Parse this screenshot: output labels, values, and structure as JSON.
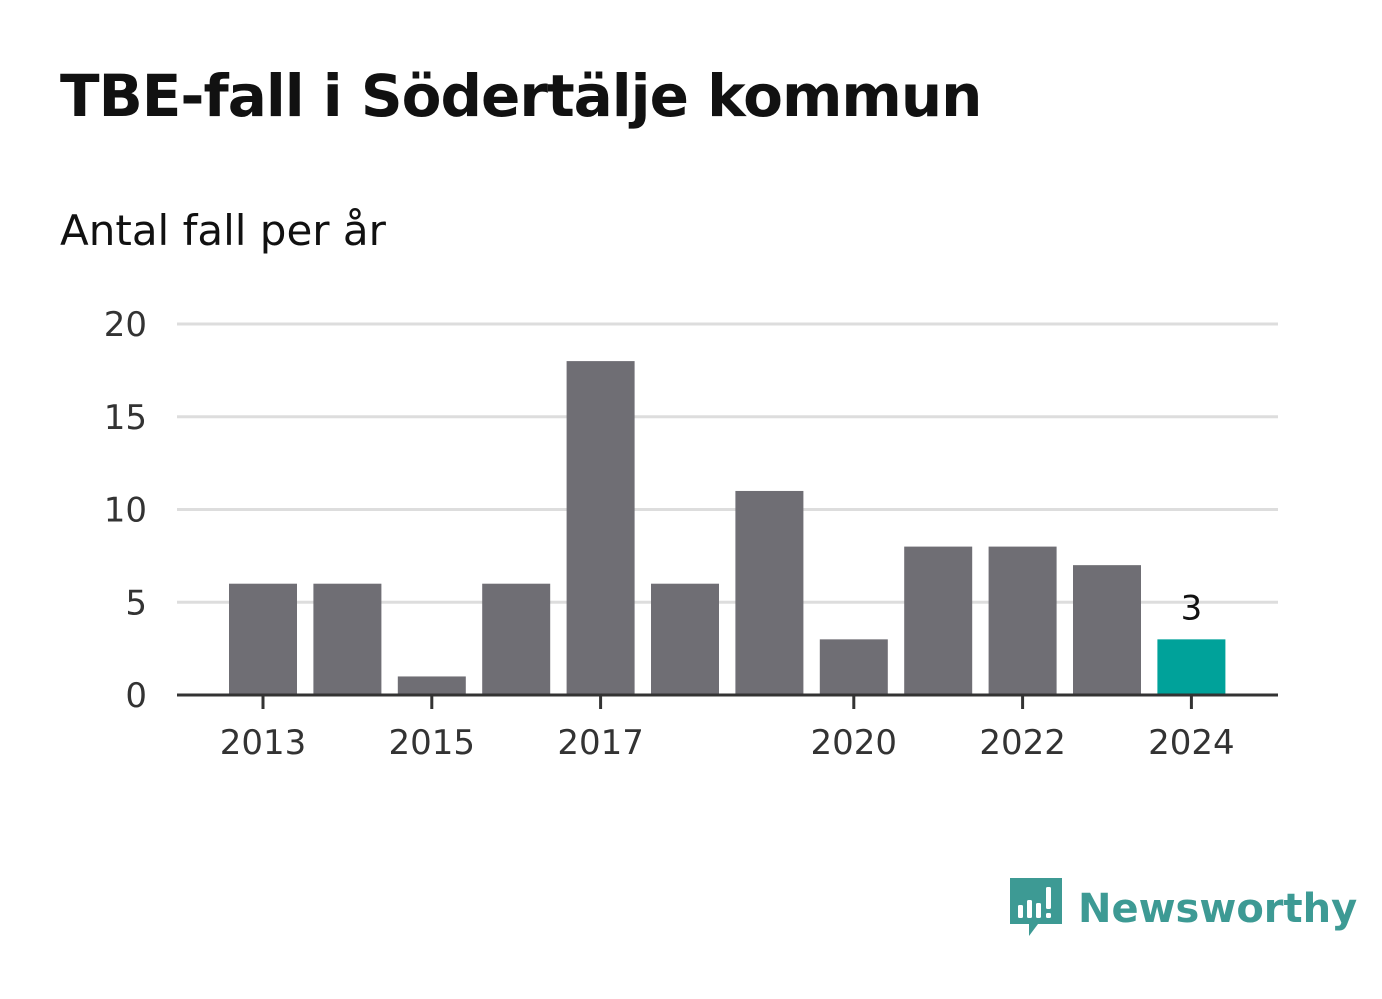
{
  "header": {
    "title": "TBE-fall i Södertälje kommun",
    "subtitle": "Antal fall per år"
  },
  "brand": {
    "name": "Newsworthy",
    "icon": "newsworthy-logo-icon",
    "color": "#3d9a94"
  },
  "colors": {
    "bar": "#6f6e74",
    "highlight": "#00a29a",
    "grid": "#dddddd",
    "axis": "#333333"
  },
  "chart_data": {
    "type": "bar",
    "categories": [
      "2013",
      "2014",
      "2015",
      "2016",
      "2017",
      "2018",
      "2019",
      "2020",
      "2021",
      "2022",
      "2023",
      "2024"
    ],
    "values": [
      6,
      6,
      1,
      6,
      18,
      6,
      11,
      3,
      8,
      8,
      7,
      3
    ],
    "x_tick_labels": [
      "2013",
      "2015",
      "2017",
      "2020",
      "2022",
      "2024"
    ],
    "y_ticks": [
      0,
      5,
      10,
      15,
      20
    ],
    "ylim": [
      0,
      20
    ],
    "grid": true,
    "highlight_index": 11,
    "data_labels": [
      {
        "index": 11,
        "text": "3"
      }
    ],
    "title": "",
    "xlabel": "",
    "ylabel": ""
  }
}
